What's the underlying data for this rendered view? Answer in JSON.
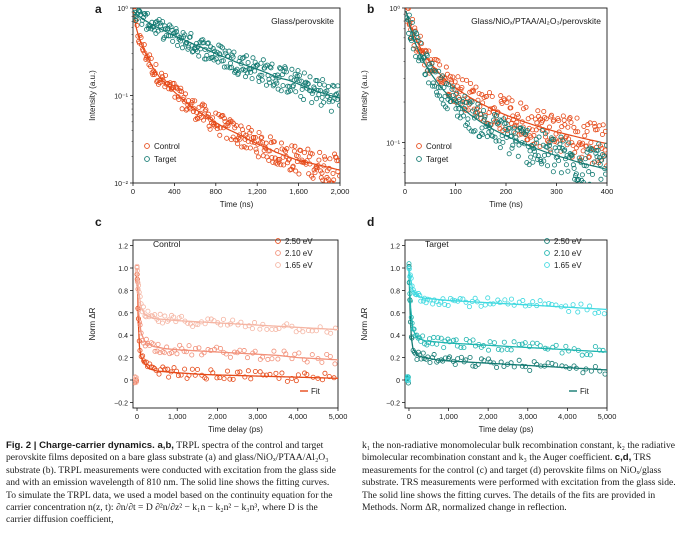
{
  "figure": {
    "colors": {
      "control": "#e64a19",
      "control_light": "#f2917a",
      "control_lighter": "#f5b5a3",
      "target": "#137a72",
      "target_mid": "#1fb5b0",
      "target_light": "#3fd9e0",
      "axis": "#1a1a1a"
    }
  },
  "chart_data": [
    {
      "panel": "a",
      "type": "scatter",
      "title": "Glass/perovskite",
      "xlabel": "Time (ns)",
      "ylabel": "Intensity (a.u.)",
      "yscale": "log",
      "xlim": [
        0,
        2000
      ],
      "ylim": [
        0.01,
        1
      ],
      "xticks": [
        "0",
        "400",
        "800",
        "1,200",
        "1,600",
        "2,000"
      ],
      "yticks": [
        "10⁻²",
        "10⁻¹",
        "10⁰"
      ],
      "legend": "bottom-left",
      "series": [
        {
          "name": "Control",
          "color": "control",
          "marker": "open-circle",
          "x": [
            5,
            30,
            60,
            100,
            150,
            200,
            260,
            330,
            400,
            500,
            600,
            700,
            800,
            900,
            1000,
            1100,
            1200,
            1300,
            1400,
            1500,
            1600,
            1700,
            1800,
            1900,
            2000
          ],
          "y": [
            0.9,
            0.6,
            0.45,
            0.34,
            0.26,
            0.2,
            0.16,
            0.13,
            0.11,
            0.085,
            0.07,
            0.058,
            0.049,
            0.042,
            0.037,
            0.032,
            0.028,
            0.025,
            0.022,
            0.02,
            0.018,
            0.017,
            0.016,
            0.015,
            0.014
          ]
        },
        {
          "name": "Target",
          "color": "target",
          "marker": "open-circle",
          "x": [
            5,
            50,
            100,
            200,
            300,
            400,
            500,
            600,
            700,
            800,
            900,
            1000,
            1100,
            1200,
            1300,
            1400,
            1500,
            1600,
            1700,
            1800,
            1900,
            2000
          ],
          "y": [
            0.92,
            0.82,
            0.74,
            0.63,
            0.55,
            0.48,
            0.43,
            0.38,
            0.34,
            0.3,
            0.27,
            0.24,
            0.22,
            0.2,
            0.18,
            0.16,
            0.15,
            0.135,
            0.12,
            0.11,
            0.1,
            0.095
          ]
        }
      ]
    },
    {
      "panel": "b",
      "type": "scatter",
      "title": "Glass/NiOₓ/PTAA/Al₂O₃/perovskite",
      "xlabel": "Time (ns)",
      "ylabel": "Intensity (a.u.)",
      "yscale": "log",
      "xlim": [
        0,
        400
      ],
      "ylim": [
        0.05,
        1
      ],
      "xticks": [
        "0",
        "100",
        "200",
        "300",
        "400"
      ],
      "yticks": [
        "10⁻¹",
        "10⁰"
      ],
      "legend": "bottom-left",
      "series": [
        {
          "name": "Control",
          "color": "control",
          "marker": "open-circle",
          "x": [
            2,
            10,
            20,
            35,
            50,
            70,
            90,
            110,
            130,
            150,
            175,
            200,
            230,
            260,
            290,
            320,
            350,
            380,
            400
          ],
          "y": [
            0.95,
            0.75,
            0.6,
            0.47,
            0.39,
            0.32,
            0.27,
            0.24,
            0.215,
            0.195,
            0.175,
            0.16,
            0.145,
            0.133,
            0.123,
            0.115,
            0.108,
            0.102,
            0.098
          ]
        },
        {
          "name": "Target",
          "color": "target",
          "marker": "open-circle",
          "x": [
            2,
            10,
            20,
            35,
            50,
            70,
            90,
            110,
            130,
            150,
            175,
            200,
            230,
            260,
            290,
            320,
            350,
            380,
            400
          ],
          "y": [
            0.95,
            0.72,
            0.55,
            0.41,
            0.33,
            0.26,
            0.215,
            0.185,
            0.16,
            0.142,
            0.125,
            0.112,
            0.1,
            0.09,
            0.082,
            0.076,
            0.07,
            0.066,
            0.063
          ]
        }
      ]
    },
    {
      "panel": "c",
      "type": "scatter",
      "title": "Control",
      "xlabel": "Time delay (ps)",
      "ylabel": "Norm ΔR",
      "xlim": [
        -100,
        5000
      ],
      "ylim": [
        -0.25,
        1.25
      ],
      "xticks": [
        "0",
        "1,000",
        "2,000",
        "3,000",
        "4,000",
        "5,000"
      ],
      "yticks": [
        "−0.2",
        "0",
        "0.2",
        "0.4",
        "0.6",
        "0.8",
        "1.0",
        "1.2"
      ],
      "legend": "top-right",
      "fit_label": "Fit",
      "series": [
        {
          "name": "2.50 eV",
          "color": "control",
          "marker": "open-circle",
          "x": [
            0,
            30,
            60,
            100,
            200,
            300,
            500,
            800,
            1200,
            1600,
            2000,
            2500,
            3000,
            3500,
            4000,
            4500,
            5000
          ],
          "y": [
            1.0,
            0.55,
            0.3,
            0.2,
            0.14,
            0.1,
            0.08,
            0.07,
            0.06,
            0.05,
            0.045,
            0.04,
            0.035,
            0.03,
            0.025,
            0.02,
            0.015
          ]
        },
        {
          "name": "2.10 eV",
          "color": "control_light",
          "marker": "open-circle",
          "x": [
            0,
            40,
            100,
            200,
            400,
            700,
            1000,
            1500,
            2000,
            2500,
            3000,
            3500,
            4000,
            4500,
            5000
          ],
          "y": [
            1.0,
            0.6,
            0.42,
            0.34,
            0.3,
            0.28,
            0.27,
            0.26,
            0.25,
            0.24,
            0.23,
            0.22,
            0.2,
            0.19,
            0.18
          ]
        },
        {
          "name": "1.65 eV",
          "color": "control_lighter",
          "marker": "open-circle",
          "x": [
            0,
            40,
            100,
            200,
            400,
            700,
            1000,
            1500,
            2000,
            2500,
            3000,
            3500,
            4000,
            4500,
            5000
          ],
          "y": [
            1.0,
            0.8,
            0.65,
            0.58,
            0.55,
            0.54,
            0.53,
            0.52,
            0.51,
            0.5,
            0.49,
            0.48,
            0.47,
            0.46,
            0.45
          ]
        }
      ]
    },
    {
      "panel": "d",
      "type": "scatter",
      "title": "Target",
      "xlabel": "Time delay (ps)",
      "ylabel": "Norm ΔR",
      "xlim": [
        -100,
        5000
      ],
      "ylim": [
        -0.25,
        1.25
      ],
      "xticks": [
        "0",
        "1,000",
        "2,000",
        "3,000",
        "4,000",
        "5,000"
      ],
      "yticks": [
        "−0.2",
        "0",
        "0.2",
        "0.4",
        "0.6",
        "0.8",
        "1.0",
        "1.2"
      ],
      "legend": "top-right",
      "fit_label": "Fit",
      "series": [
        {
          "name": "2.50 eV",
          "color": "target",
          "marker": "open-circle",
          "x": [
            0,
            30,
            60,
            100,
            200,
            400,
            700,
            1000,
            1500,
            2000,
            2500,
            3000,
            3500,
            4000,
            4500,
            5000
          ],
          "y": [
            1.0,
            0.6,
            0.38,
            0.28,
            0.22,
            0.2,
            0.18,
            0.17,
            0.16,
            0.15,
            0.14,
            0.13,
            0.12,
            0.11,
            0.1,
            0.09
          ]
        },
        {
          "name": "2.10 eV",
          "color": "target_mid",
          "marker": "open-circle",
          "x": [
            0,
            40,
            100,
            200,
            400,
            700,
            1000,
            1500,
            2000,
            2500,
            3000,
            3500,
            4000,
            4500,
            5000
          ],
          "y": [
            1.0,
            0.65,
            0.45,
            0.38,
            0.35,
            0.34,
            0.33,
            0.32,
            0.31,
            0.3,
            0.29,
            0.28,
            0.27,
            0.26,
            0.25
          ]
        },
        {
          "name": "1.65 eV",
          "color": "target_light",
          "marker": "open-circle",
          "x": [
            0,
            40,
            100,
            200,
            400,
            700,
            1000,
            1500,
            2000,
            2500,
            3000,
            3500,
            4000,
            4500,
            5000
          ],
          "y": [
            1.0,
            0.9,
            0.8,
            0.75,
            0.73,
            0.72,
            0.71,
            0.7,
            0.69,
            0.68,
            0.67,
            0.66,
            0.65,
            0.64,
            0.63
          ]
        }
      ]
    }
  ],
  "caption": {
    "lead": "Fig. 2 | Charge-carrier dynamics. a,b,",
    "left": " TRPL spectra of the control and target perovskite films deposited on a bare glass substrate (a) and glass/NiOₓ/PTAA/Al₂O₃ substrate (b). TRPL measurements were conducted with excitation from the glass side and with an emission wavelength of 810 nm. The solid line shows the fitting curves. To simulate the TRPL data, we used a model based on the continuity equation for the carrier concentration n(z, t): ∂n/∂t = D ∂²n/∂z² − k₁n − k₂n² − k₃n³, where D is the carrier diffusion coefficient,",
    "right_1": "k₁ the non-radiative monomolecular bulk recombination constant, k₂ the radiative bimolecular recombination constant and k₃ the Auger coefficient.",
    "right_lead": "c,d,",
    "right_2": " TRS measurements for the control (c) and target (d) perovskite films on NiOₓ/glass substrate. TRS measurements were performed with excitation from the glass side. The solid line shows the fitting curves. The details of the fits are provided in Methods. Norm ΔR, normalized change in reflection."
  }
}
